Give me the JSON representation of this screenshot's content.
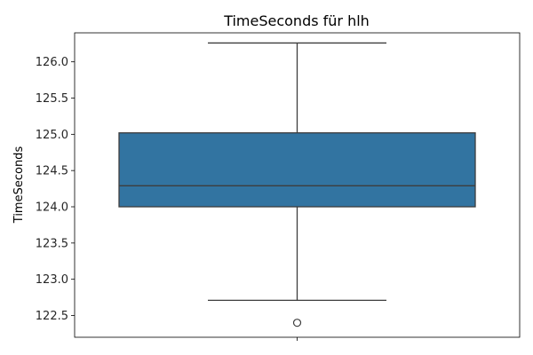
{
  "chart_data": {
    "type": "box",
    "title": "TimeSeconds für hlh",
    "xlabel": "",
    "ylabel": "TimeSeconds",
    "ylim": [
      122.2,
      126.4
    ],
    "yticks": [
      "122.5",
      "123.0",
      "123.5",
      "124.0",
      "124.5",
      "125.0",
      "125.5",
      "126.0"
    ],
    "box": {
      "whisker_low": 122.71,
      "q1": 124.0,
      "median": 124.29,
      "q3": 125.02,
      "whisker_high": 126.26,
      "outliers": [
        122.4
      ]
    },
    "colors": {
      "box_fill": "#3274a1",
      "line": "#3d3d3d"
    }
  }
}
